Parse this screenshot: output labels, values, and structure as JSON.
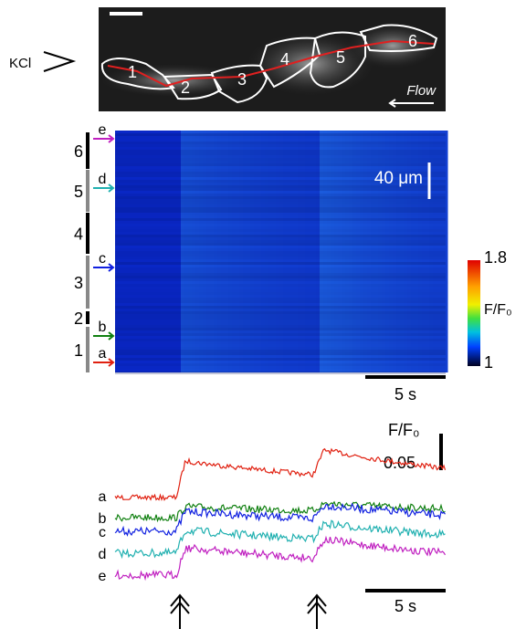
{
  "top_image": {
    "stimulus": "KCl",
    "flow": "Flow",
    "cells": [
      "1",
      "2",
      "3",
      "4",
      "5",
      "6"
    ]
  },
  "kymograph": {
    "segments": [
      "6",
      "5",
      "4",
      "3",
      "2",
      "1"
    ],
    "positions": [
      "e",
      "d",
      "c",
      "b",
      "a"
    ],
    "space_scale": "40 μm",
    "time_scale": "5 s"
  },
  "colorbar": {
    "max": "1.8",
    "label": "F/F₀",
    "min": "1"
  },
  "traces": {
    "y_label": "F/F₀",
    "y_scale": "0.05",
    "labels": [
      "a",
      "b",
      "c",
      "d",
      "e"
    ],
    "time_scale": "5 s"
  }
}
